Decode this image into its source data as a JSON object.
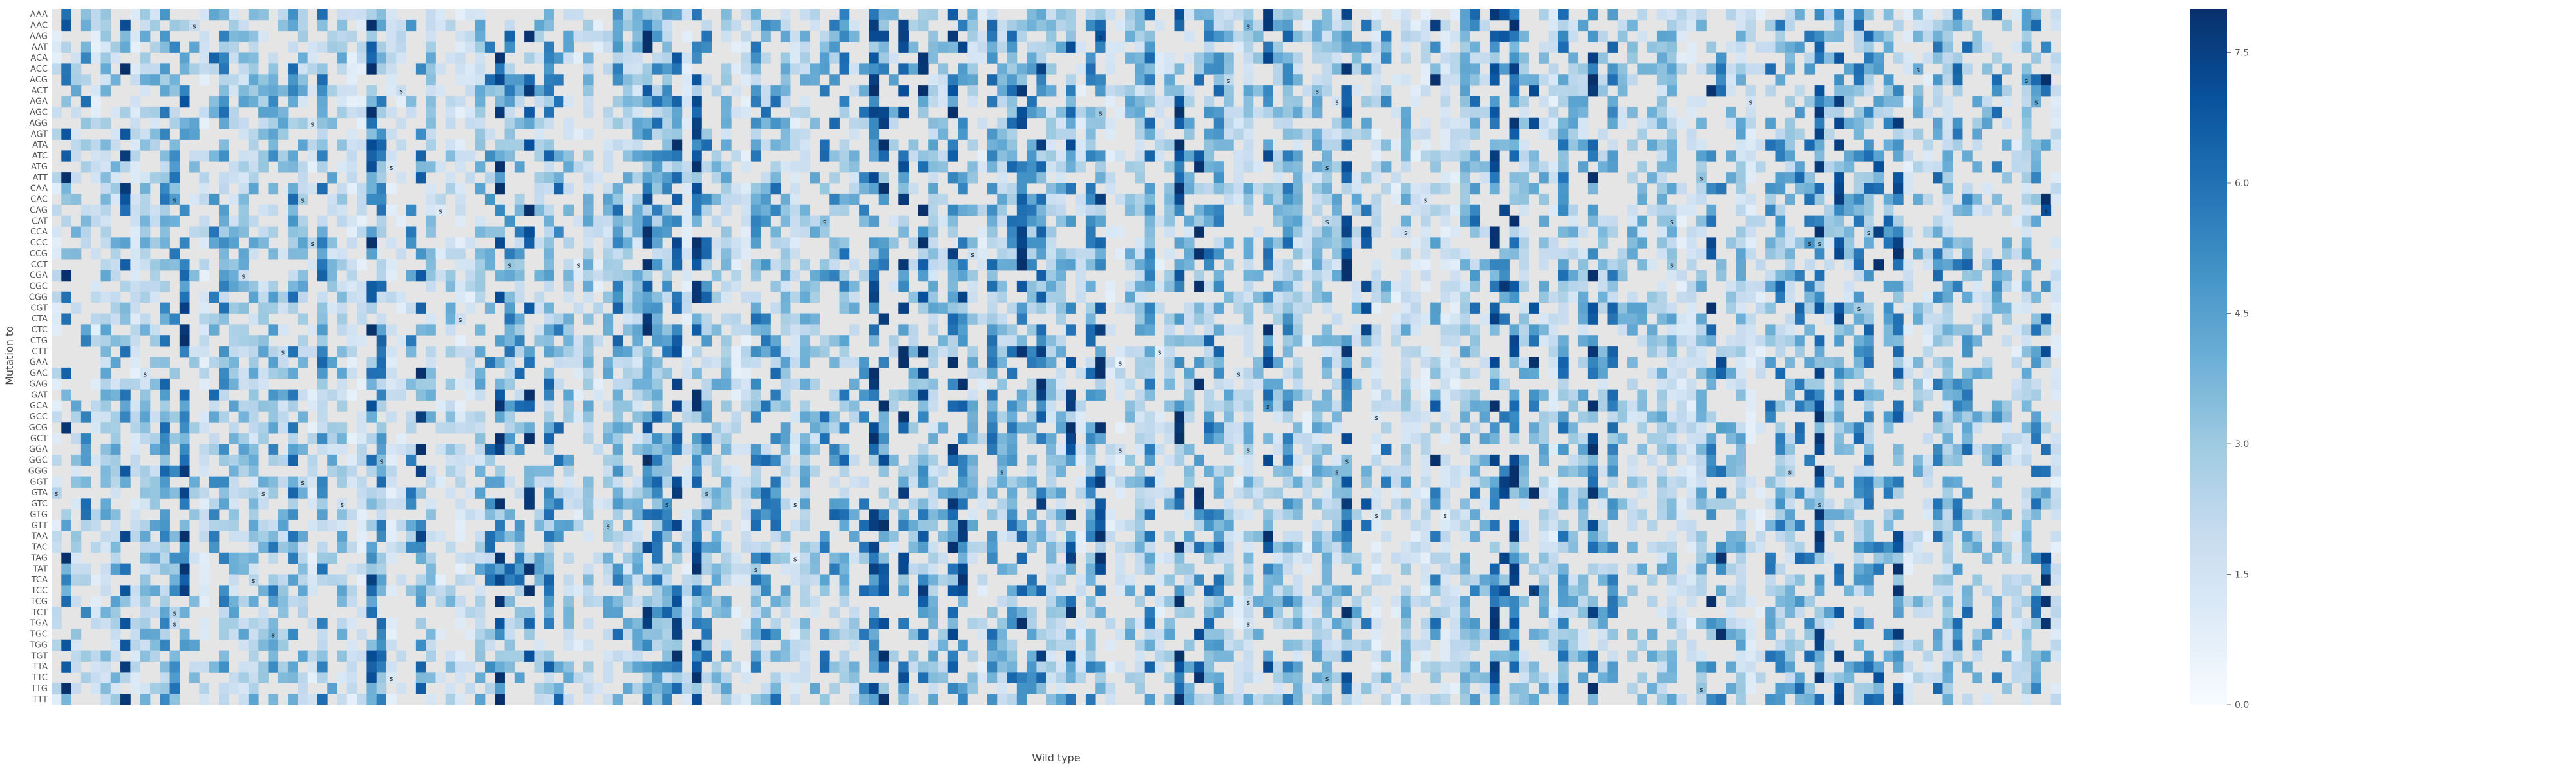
{
  "chart_data": {
    "type": "heatmap",
    "xlabel": "Wild type",
    "ylabel": "Mutation to",
    "rows": [
      "AAA",
      "AAC",
      "AAG",
      "AAT",
      "ACA",
      "ACC",
      "ACG",
      "ACT",
      "AGA",
      "AGC",
      "AGG",
      "AGT",
      "ATA",
      "ATC",
      "ATG",
      "ATT",
      "CAA",
      "CAC",
      "CAG",
      "CAT",
      "CCA",
      "CCC",
      "CCG",
      "CCT",
      "CGA",
      "CGC",
      "CGG",
      "CGT",
      "CTA",
      "CTC",
      "CTG",
      "CTT",
      "GAA",
      "GAC",
      "GAG",
      "GAT",
      "GCA",
      "GCC",
      "GCG",
      "GCT",
      "GGA",
      "GGC",
      "GGG",
      "GGT",
      "GTA",
      "GTC",
      "GTG",
      "GTT",
      "TAA",
      "TAC",
      "TAG",
      "TAT",
      "TCA",
      "TCC",
      "TCG",
      "TCT",
      "TGA",
      "TGC",
      "TGG",
      "TGT",
      "TTA",
      "TTC",
      "TTG",
      "TTT"
    ],
    "column_count": 204,
    "colorbar": {
      "min": 0.0,
      "max": 8.0,
      "ticks": [
        "0.0",
        "1.5",
        "3.0",
        "4.5",
        "6.0",
        "7.5"
      ],
      "tick_values": [
        0.0,
        1.5,
        3.0,
        4.5,
        6.0,
        7.5
      ],
      "colormap": [
        "#f7fbff",
        "#deebf7",
        "#c6dbef",
        "#9ecae1",
        "#6baed6",
        "#4292c6",
        "#2171b5",
        "#08519c",
        "#08306b"
      ]
    },
    "missing_color": "#e5e5e5",
    "cell_annotation": "s"
  }
}
